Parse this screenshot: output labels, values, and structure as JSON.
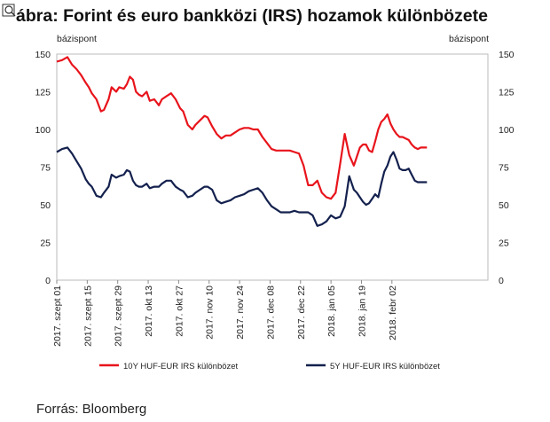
{
  "chart_data": {
    "type": "line",
    "title": "ábra: Forint és euro bankközi (IRS) hozamok különbözete",
    "title_icon": "magnifier-chart-icon",
    "ylabel_left": "bázispont",
    "ylabel_right": "bázispont",
    "ylim": [
      0,
      150
    ],
    "yticks": [
      "0",
      "25",
      "50",
      "75",
      "100",
      "125",
      "150"
    ],
    "xlim": [
      0,
      28.3
    ],
    "x_ticks": [
      {
        "x": 0,
        "label": "2017. szept 01"
      },
      {
        "x": 2,
        "label": "2017. szept 15"
      },
      {
        "x": 4,
        "label": "2017. szept 29"
      },
      {
        "x": 6,
        "label": "2017. okt 13"
      },
      {
        "x": 8,
        "label": "2017. okt 27"
      },
      {
        "x": 10,
        "label": "2017. nov 10"
      },
      {
        "x": 12,
        "label": "2017. nov 24"
      },
      {
        "x": 14,
        "label": "2017. dec 08"
      },
      {
        "x": 16,
        "label": "2017. dec 22"
      },
      {
        "x": 18,
        "label": "2018. jan 05"
      },
      {
        "x": 20,
        "label": "2018. jan 19"
      },
      {
        "x": 22,
        "label": "2018. febr 02"
      }
    ],
    "x": [
      0.0,
      0.35,
      0.7,
      1.0,
      1.3,
      1.6,
      1.9,
      2.1,
      2.3,
      2.6,
      2.9,
      3.1,
      3.4,
      3.6,
      3.9,
      4.1,
      4.4,
      4.6,
      4.8,
      5.0,
      5.2,
      5.4,
      5.6,
      5.9,
      6.1,
      6.4,
      6.7,
      6.9,
      7.2,
      7.5,
      7.8,
      8.1,
      8.3,
      8.6,
      8.9,
      9.1,
      9.4,
      9.7,
      9.9,
      10.2,
      10.5,
      10.8,
      11.1,
      11.4,
      11.7,
      12.0,
      12.3,
      12.6,
      12.9,
      13.2,
      13.5,
      13.8,
      14.1,
      14.4,
      14.7,
      15.0,
      15.3,
      15.6,
      15.9,
      16.2,
      16.5,
      16.8,
      17.1,
      17.4,
      17.7,
      18.0,
      18.3,
      18.6,
      18.9,
      19.2,
      19.5,
      19.7,
      19.9,
      20.1,
      20.3,
      20.5,
      20.7,
      20.9,
      21.1,
      21.3,
      21.5,
      21.7,
      21.9,
      22.1,
      22.3,
      22.5,
      22.7,
      22.9,
      23.1,
      23.3,
      23.5,
      23.7,
      23.9,
      24.1,
      24.3
    ],
    "series": [
      {
        "name": "10Y HUF-EUR IRS különbözet",
        "color": "#e8141c",
        "values": [
          145,
          146,
          148,
          143,
          140,
          136,
          131,
          128,
          124,
          120,
          112,
          113,
          120,
          128,
          125,
          128,
          127,
          130,
          135,
          133,
          125,
          123,
          122,
          125,
          119,
          120,
          116,
          120,
          122,
          124,
          120,
          114,
          112,
          103,
          100,
          103,
          106,
          109,
          108,
          102,
          97,
          94,
          96,
          96,
          98,
          100,
          101,
          101,
          100,
          100,
          95,
          91,
          87,
          86,
          86,
          86,
          86,
          85,
          84,
          76,
          63,
          63,
          66,
          58,
          55,
          54,
          58,
          77,
          97,
          83,
          76,
          82,
          88,
          90,
          90,
          86,
          85,
          92,
          100,
          105,
          107,
          110,
          104,
          100,
          97,
          95,
          95,
          94,
          93,
          90,
          88,
          87,
          88,
          88,
          88
        ]
      },
      {
        "name": "5Y HUF-EUR IRS különbözet",
        "color": "#14214e",
        "values": [
          85,
          87,
          88,
          84,
          79,
          74,
          67,
          64,
          62,
          56,
          55,
          58,
          62,
          70,
          68,
          69,
          70,
          73,
          72,
          66,
          63,
          62,
          62,
          64,
          61,
          62,
          62,
          64,
          66,
          66,
          62,
          60,
          59,
          55,
          56,
          58,
          60,
          62,
          62,
          60,
          53,
          51,
          52,
          53,
          55,
          56,
          57,
          59,
          60,
          61,
          58,
          53,
          49,
          47,
          45,
          45,
          45,
          46,
          45,
          45,
          45,
          43,
          36,
          37,
          39,
          43,
          41,
          42,
          49,
          69,
          60,
          58,
          55,
          52,
          50,
          51,
          54,
          57,
          55,
          64,
          72,
          76,
          82,
          85,
          80,
          74,
          73,
          73,
          74,
          70,
          66,
          65,
          65,
          65,
          65
        ]
      }
    ],
    "source": "Forrás: Bloomberg"
  }
}
